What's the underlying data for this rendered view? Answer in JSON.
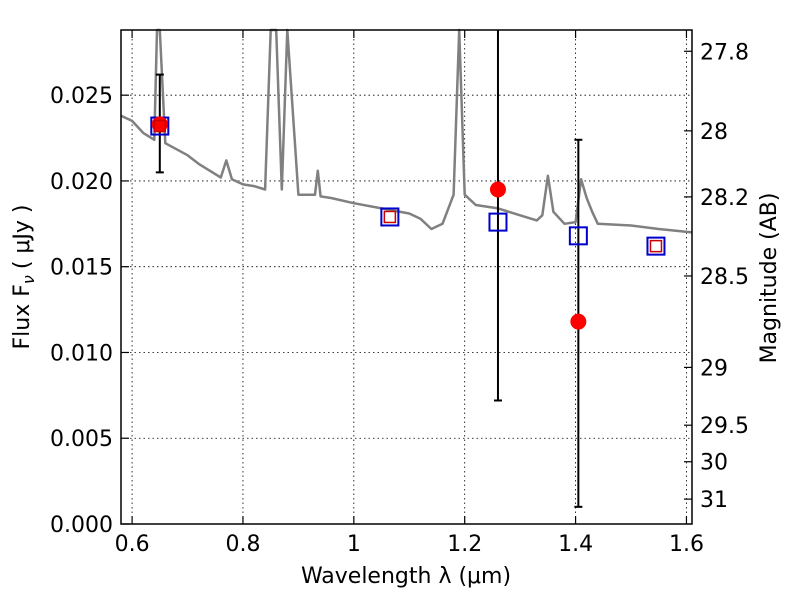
{
  "chart_data": {
    "type": "scatter",
    "xlabel": "Wavelength  λ (μm)",
    "ylabel_left": "Flux  F",
    "ylabel_left_sub": "ν",
    "ylabel_left_units": "( μJy )",
    "ylabel_right": "Magnitude (AB)",
    "xlim": [
      0.58,
      1.61
    ],
    "ylim": [
      0.0,
      0.0288
    ],
    "grid": true,
    "x_ticks": [
      0.6,
      0.8,
      1.0,
      1.2,
      1.4,
      1.6
    ],
    "x_tick_labels": [
      "0.6",
      "0.8",
      "1",
      "1.2",
      "1.4",
      "1.6"
    ],
    "y_ticks": [
      0.0,
      0.005,
      0.01,
      0.015,
      0.02,
      0.025
    ],
    "y_tick_labels": [
      "0.000",
      "0.005",
      "0.010",
      "0.015",
      "0.020",
      "0.025"
    ],
    "mag_ticks": [
      {
        "label": "27.8",
        "flux": 0.02756
      },
      {
        "label": "28",
        "flux": 0.02292
      },
      {
        "label": "28.2",
        "flux": 0.01907
      },
      {
        "label": "28.5",
        "flux": 0.01446
      },
      {
        "label": "29",
        "flux": 0.00913
      },
      {
        "label": "29.5",
        "flux": 0.00576
      },
      {
        "label": "30",
        "flux": 0.00363
      },
      {
        "label": "31",
        "flux": 0.00145
      }
    ],
    "model_spectrum": {
      "color": "#808080",
      "x": [
        0.58,
        0.6,
        0.62,
        0.64,
        0.645,
        0.65,
        0.66,
        0.7,
        0.72,
        0.75,
        0.76,
        0.77,
        0.78,
        0.8,
        0.82,
        0.84,
        0.85,
        0.86,
        0.87,
        0.88,
        0.9,
        0.93,
        0.935,
        0.94,
        0.96,
        1.0,
        1.05,
        1.1,
        1.12,
        1.14,
        1.16,
        1.18,
        1.19,
        1.2,
        1.22,
        1.26,
        1.3,
        1.33,
        1.34,
        1.35,
        1.36,
        1.38,
        1.4,
        1.41,
        1.42,
        1.43,
        1.44,
        1.5,
        1.55,
        1.61
      ],
      "y": [
        0.0238,
        0.0235,
        0.0228,
        0.0224,
        0.0288,
        0.0288,
        0.0222,
        0.0215,
        0.021,
        0.0204,
        0.0202,
        0.0212,
        0.0201,
        0.0198,
        0.0197,
        0.0195,
        0.0288,
        0.0288,
        0.0195,
        0.0288,
        0.0192,
        0.0192,
        0.0206,
        0.0191,
        0.019,
        0.0187,
        0.0184,
        0.0181,
        0.0178,
        0.0172,
        0.0175,
        0.0192,
        0.0288,
        0.0192,
        0.0186,
        0.0184,
        0.018,
        0.0177,
        0.018,
        0.0203,
        0.0182,
        0.0175,
        0.0176,
        0.0201,
        0.019,
        0.0182,
        0.0175,
        0.0174,
        0.0172,
        0.017
      ]
    },
    "series": [
      {
        "name": "",
        "marker": "open-square",
        "color": "#0000cc",
        "points": [
          {
            "x": 0.65,
            "y": 0.0232
          },
          {
            "x": 1.065,
            "y": 0.0179
          },
          {
            "x": 1.26,
            "y": 0.0176
          },
          {
            "x": 1.405,
            "y": 0.0168
          },
          {
            "x": 1.545,
            "y": 0.0162
          }
        ]
      },
      {
        "name": "",
        "marker": "open-square-small",
        "color": "#cc0000",
        "points": [
          {
            "x": 0.65,
            "y": 0.0232
          },
          {
            "x": 1.065,
            "y": 0.0179
          },
          {
            "x": 1.545,
            "y": 0.0162
          }
        ]
      },
      {
        "name": "",
        "marker": "filled-circle",
        "color": "#ff0000",
        "points": [
          {
            "x": 0.65,
            "y": 0.0233
          },
          {
            "x": 1.26,
            "y": 0.0195
          },
          {
            "x": 1.405,
            "y": 0.0118
          }
        ]
      },
      {
        "name": "",
        "marker": "errorbar",
        "color": "#000000",
        "bars": [
          {
            "x": 0.65,
            "low": 0.0205,
            "high": 0.0262
          },
          {
            "x": 1.26,
            "low": 0.0072,
            "high": 0.0288
          },
          {
            "x": 1.405,
            "low": 0.001,
            "high": 0.0224
          }
        ]
      }
    ]
  }
}
